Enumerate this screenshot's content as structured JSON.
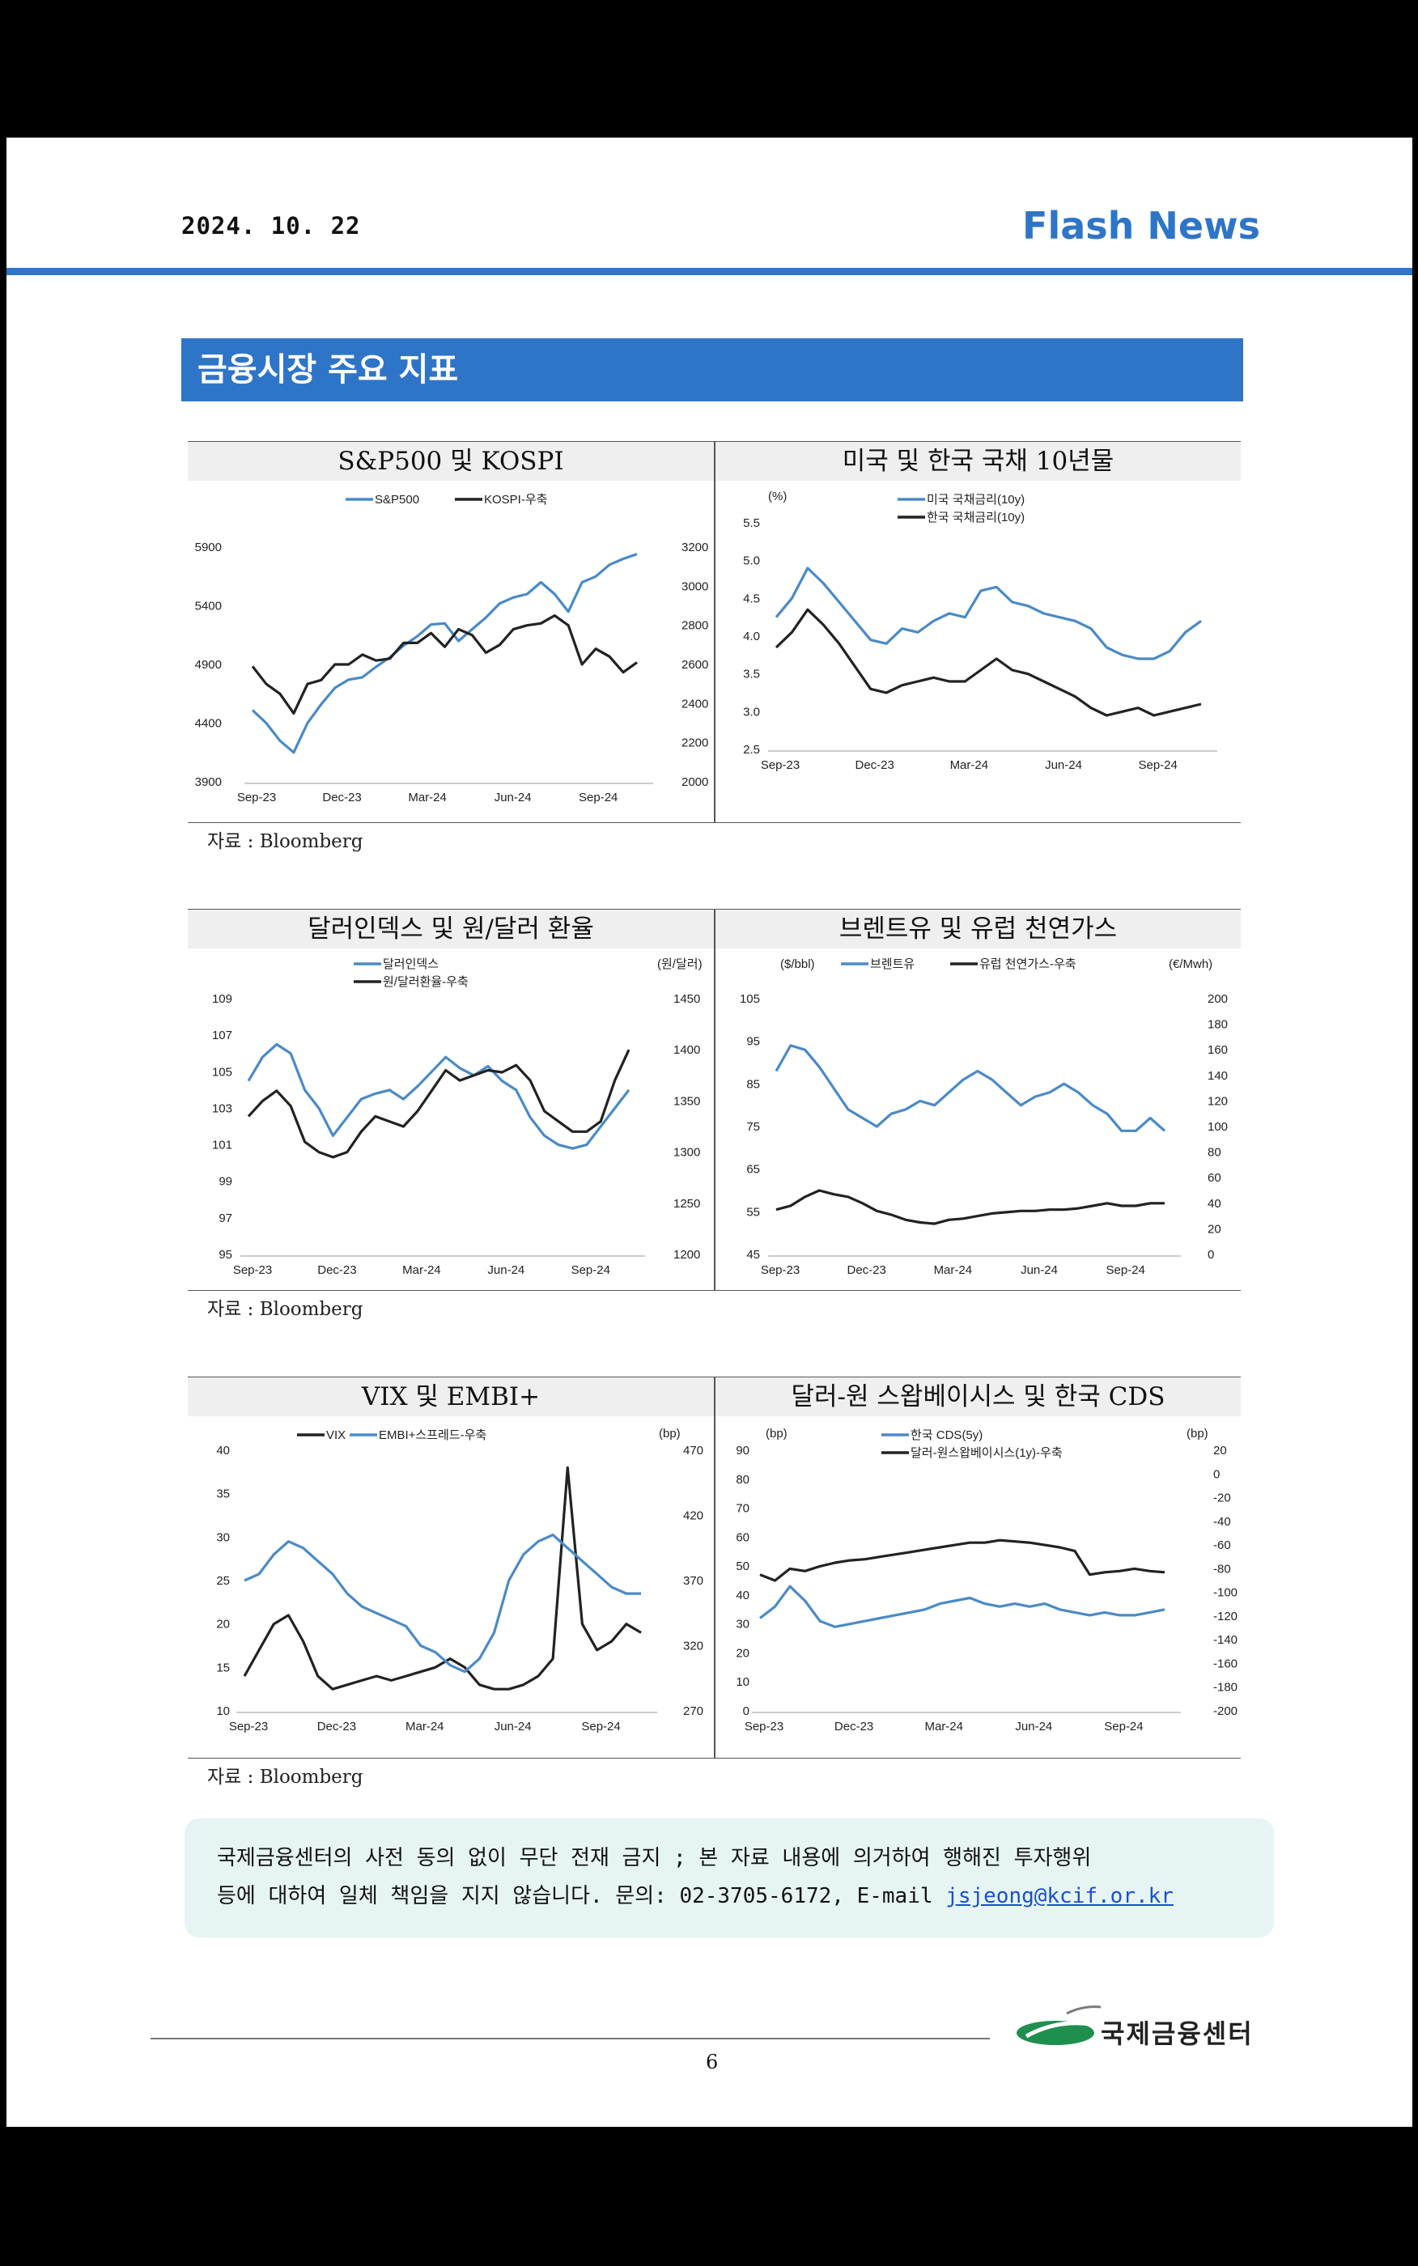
{
  "header": {
    "date": "2024. 10. 22",
    "brand": "Flash News"
  },
  "section_title": "금융시장 주요 지표",
  "panels": [
    {
      "left_title": "S&P500 및 KOSPI",
      "right_title": "미국 및 한국 국채 10년물",
      "source": "자료 : Bloomberg"
    },
    {
      "left_title": "달러인덱스 및 원/달러 환율",
      "right_title": "브렌트유 및 유럽 천연가스",
      "source": "자료 : Bloomberg"
    },
    {
      "left_title": "VIX 및 EMBI+",
      "right_title": "달러-원 스왑베이시스 및 한국 CDS",
      "source": "자료 : Bloomberg"
    }
  ],
  "notice": {
    "line1": "국제금융센터의 사전 동의 없이 무단 전재 금지 ; 본 자료 내용에 의거하여 행해진 투자행위",
    "line2": "등에 대하여 일체 책임을 지지 않습니다. 문의: 02-3705-6172, E-mail ",
    "email": "jsjeong@kcif.or.kr"
  },
  "footer": {
    "page": "6",
    "org": "국제금융센터"
  },
  "colors": {
    "blue": "#2e75c8",
    "series_blue": "#4a8ac6",
    "series_dark": "#222222"
  },
  "chart_data": [
    {
      "type": "line",
      "x_ticks": [
        "Sep-23",
        "Dec-23",
        "Mar-24",
        "Jun-24",
        "Sep-24"
      ],
      "y_left_ticks": [
        3900,
        4400,
        4900,
        5400,
        5900
      ],
      "y_right_ticks": [
        2000,
        2200,
        2400,
        2600,
        2800,
        3000,
        3200
      ],
      "series": [
        {
          "name": "S&P500",
          "axis": "left",
          "color": "#4a8ac6",
          "values": [
            4510,
            4400,
            4250,
            4150,
            4400,
            4560,
            4700,
            4770,
            4790,
            4880,
            4960,
            5060,
            5140,
            5240,
            5250,
            5100,
            5200,
            5300,
            5420,
            5470,
            5500,
            5600,
            5500,
            5350,
            5600,
            5650,
            5750,
            5800,
            5840
          ]
        },
        {
          "name": "KOSPI-우축",
          "axis": "right",
          "color": "#222222",
          "values": [
            2590,
            2500,
            2450,
            2350,
            2500,
            2520,
            2600,
            2600,
            2650,
            2620,
            2630,
            2710,
            2710,
            2760,
            2690,
            2780,
            2750,
            2660,
            2700,
            2780,
            2800,
            2810,
            2850,
            2800,
            2600,
            2680,
            2640,
            2560,
            2610
          ]
        }
      ]
    },
    {
      "type": "line",
      "x_ticks": [
        "Sep-23",
        "Dec-23",
        "Mar-24",
        "Jun-24",
        "Sep-24"
      ],
      "y_left_label": "(%)",
      "y_left_ticks": [
        "2.5",
        "3.0",
        "3.5",
        "4.0",
        "4.5",
        "5.0",
        "5.5"
      ],
      "series": [
        {
          "name": "미국 국채금리(10y)",
          "color": "#4a8ac6",
          "values": [
            4.25,
            4.5,
            4.9,
            4.7,
            4.45,
            4.2,
            3.95,
            3.9,
            4.1,
            4.05,
            4.2,
            4.3,
            4.25,
            4.6,
            4.65,
            4.45,
            4.4,
            4.3,
            4.25,
            4.2,
            4.1,
            3.85,
            3.75,
            3.7,
            3.7,
            3.8,
            4.05,
            4.2
          ]
        },
        {
          "name": "한국 국채금리(10y)",
          "color": "#222222",
          "values": [
            3.85,
            4.05,
            4.35,
            4.15,
            3.9,
            3.6,
            3.3,
            3.25,
            3.35,
            3.4,
            3.45,
            3.4,
            3.4,
            3.55,
            3.7,
            3.55,
            3.5,
            3.4,
            3.3,
            3.2,
            3.05,
            2.95,
            3.0,
            3.05,
            2.95,
            3.0,
            3.05,
            3.1
          ]
        }
      ]
    },
    {
      "type": "line",
      "x_ticks": [
        "Sep-23",
        "Dec-23",
        "Mar-24",
        "Jun-24",
        "Sep-24"
      ],
      "y_left_ticks": [
        95,
        97,
        99,
        101,
        103,
        105,
        107,
        109
      ],
      "y_right_label": "(원/달러)",
      "y_right_ticks": [
        1200,
        1250,
        1300,
        1350,
        1400,
        1450
      ],
      "series": [
        {
          "name": "달러인덱스",
          "axis": "left",
          "color": "#4a8ac6",
          "values": [
            104.5,
            105.8,
            106.5,
            106.0,
            104.0,
            103.0,
            101.5,
            102.5,
            103.5,
            103.8,
            104.0,
            103.5,
            104.2,
            105.0,
            105.8,
            105.2,
            104.8,
            105.3,
            104.5,
            104.0,
            102.5,
            101.5,
            101.0,
            100.8,
            101.0,
            102.0,
            103.0,
            104.0
          ]
        },
        {
          "name": "원/달러환율-우축",
          "axis": "right",
          "color": "#222222",
          "values": [
            1335,
            1350,
            1360,
            1345,
            1310,
            1300,
            1295,
            1300,
            1320,
            1335,
            1330,
            1325,
            1340,
            1360,
            1380,
            1370,
            1375,
            1380,
            1378,
            1385,
            1370,
            1340,
            1330,
            1320,
            1320,
            1330,
            1370,
            1400
          ]
        }
      ]
    },
    {
      "type": "line",
      "x_ticks": [
        "Sep-23",
        "Dec-23",
        "Mar-24",
        "Jun-24",
        "Sep-24"
      ],
      "y_left_label": "($/bbl)",
      "y_left_ticks": [
        45,
        55,
        65,
        75,
        85,
        95,
        105
      ],
      "y_right_label": "(€/Mwh)",
      "y_right_ticks": [
        0,
        20,
        40,
        60,
        80,
        100,
        120,
        140,
        160,
        180,
        200
      ],
      "series": [
        {
          "name": "브렌트유",
          "axis": "left",
          "color": "#4a8ac6",
          "values": [
            88,
            94,
            93,
            89,
            84,
            79,
            77,
            75,
            78,
            79,
            81,
            80,
            83,
            86,
            88,
            86,
            83,
            80,
            82,
            83,
            85,
            83,
            80,
            78,
            74,
            74,
            77,
            74
          ]
        },
        {
          "name": "유럽 천연가스-우축",
          "axis": "right",
          "color": "#222222",
          "values": [
            35,
            38,
            45,
            50,
            47,
            45,
            40,
            34,
            31,
            27,
            25,
            24,
            27,
            28,
            30,
            32,
            33,
            34,
            34,
            35,
            35,
            36,
            38,
            40,
            38,
            38,
            40,
            40
          ]
        }
      ]
    },
    {
      "type": "line",
      "x_ticks": [
        "Sep-23",
        "Dec-23",
        "Mar-24",
        "Jun-24",
        "Sep-24"
      ],
      "y_left_ticks": [
        10,
        15,
        20,
        25,
        30,
        35,
        40
      ],
      "y_right_label": "(bp)",
      "y_right_ticks": [
        270,
        320,
        370,
        420,
        470
      ],
      "series": [
        {
          "name": "VIX",
          "axis": "left",
          "color": "#222222",
          "values": [
            14,
            17,
            20,
            21,
            18,
            14,
            12.5,
            13,
            13.5,
            14,
            13.5,
            14,
            14.5,
            15,
            16,
            15,
            13,
            12.5,
            12.5,
            13,
            14,
            16,
            38,
            20,
            17,
            18,
            20,
            19
          ]
        },
        {
          "name": "EMBI+스프레드-우축",
          "axis": "right",
          "color": "#4a8ac6",
          "values": [
            370,
            375,
            390,
            400,
            395,
            385,
            375,
            360,
            350,
            345,
            340,
            335,
            320,
            315,
            305,
            300,
            310,
            330,
            370,
            390,
            400,
            405,
            395,
            385,
            375,
            365,
            360,
            360
          ]
        }
      ]
    },
    {
      "type": "line",
      "x_ticks": [
        "Sep-23",
        "Dec-23",
        "Mar-24",
        "Jun-24",
        "Sep-24"
      ],
      "y_left_label": "(bp)",
      "y_left_ticks": [
        0,
        10,
        20,
        30,
        40,
        50,
        60,
        70,
        80,
        90
      ],
      "y_right_label": "(bp)",
      "y_right_ticks": [
        -200,
        -180,
        -160,
        -140,
        -120,
        -100,
        -80,
        -60,
        -40,
        -20,
        0,
        20
      ],
      "series": [
        {
          "name": "한국 CDS(5y)",
          "axis": "left",
          "color": "#4a8ac6",
          "values": [
            32,
            36,
            43,
            38,
            31,
            29,
            30,
            31,
            32,
            33,
            34,
            35,
            37,
            38,
            39,
            37,
            36,
            37,
            36,
            37,
            35,
            34,
            33,
            34,
            33,
            33,
            34,
            35
          ]
        },
        {
          "name": "달러-원스왑베이시스(1y)-우축",
          "axis": "right",
          "color": "#222222",
          "values": [
            -85,
            -90,
            -80,
            -82,
            -78,
            -75,
            -73,
            -72,
            -70,
            -68,
            -66,
            -64,
            -62,
            -60,
            -58,
            -58,
            -56,
            -57,
            -58,
            -60,
            -62,
            -65,
            -85,
            -83,
            -82,
            -80,
            -82,
            -83
          ]
        }
      ]
    }
  ]
}
